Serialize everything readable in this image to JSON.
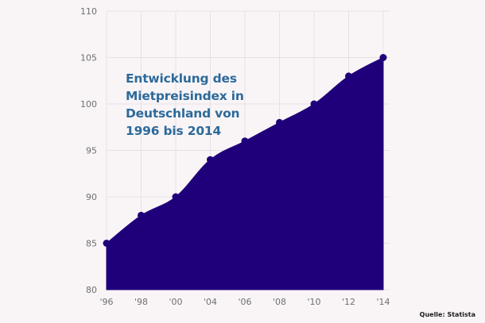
{
  "chart_data": {
    "type": "area",
    "title": "Entwicklung des Mietpreisindex in Deutschland von 1996 bis 2014",
    "x": [
      "'96",
      "'98",
      "'00",
      "'04",
      "'06",
      "'08",
      "'10",
      "'12",
      "'14"
    ],
    "values": [
      85,
      88,
      90,
      94,
      96,
      98,
      100,
      103,
      105
    ],
    "ylim": [
      80,
      110
    ],
    "yticks": [
      80,
      85,
      90,
      95,
      100,
      105,
      110
    ],
    "grid": true,
    "xlabel": "",
    "ylabel": "",
    "colors": {
      "area": "#20007a",
      "marker": "#20007a",
      "title": "#2d6a9a"
    }
  },
  "source": "Quelle: Statista"
}
